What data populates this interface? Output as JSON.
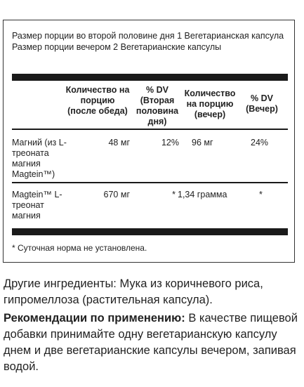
{
  "serving": {
    "line1": "Размер порции во второй половине дня 1 Вегетарианская капсула",
    "line2": "Размер порции вечером 2 Вегетарианские капсулы"
  },
  "columns": {
    "amount_afternoon": "Количество на порцию (после обеда)",
    "dv_afternoon": "% DV (Вторая половина дня)",
    "amount_evening": "Количество на порцию (вечер)",
    "dv_evening": "% DV (Вечер)"
  },
  "rows": [
    {
      "name": "Магний (из L-треоната магния Magtein™)",
      "amount_afternoon": "48 мг",
      "dv_afternoon": "12%",
      "amount_evening": "96 мг",
      "dv_evening": "24%"
    },
    {
      "name": "Magtein™ L-треонат магния",
      "amount_afternoon": "670 мг",
      "dv_afternoon": "*",
      "amount_evening": "1,34 грамма",
      "dv_evening": "*"
    }
  ],
  "footnote": "* Суточная норма не установлена.",
  "other_ingredients": "Другие ингредиенты: Мука из коричневого риса, гипромеллоза (растительная капсула).",
  "directions": {
    "label": "Рекомендации по применению:",
    "text": " В качестве пищевой добавки принимайте одну вегетарианскую капсулу днем и две вегетарианские капсулы вечером, запивая водой."
  }
}
